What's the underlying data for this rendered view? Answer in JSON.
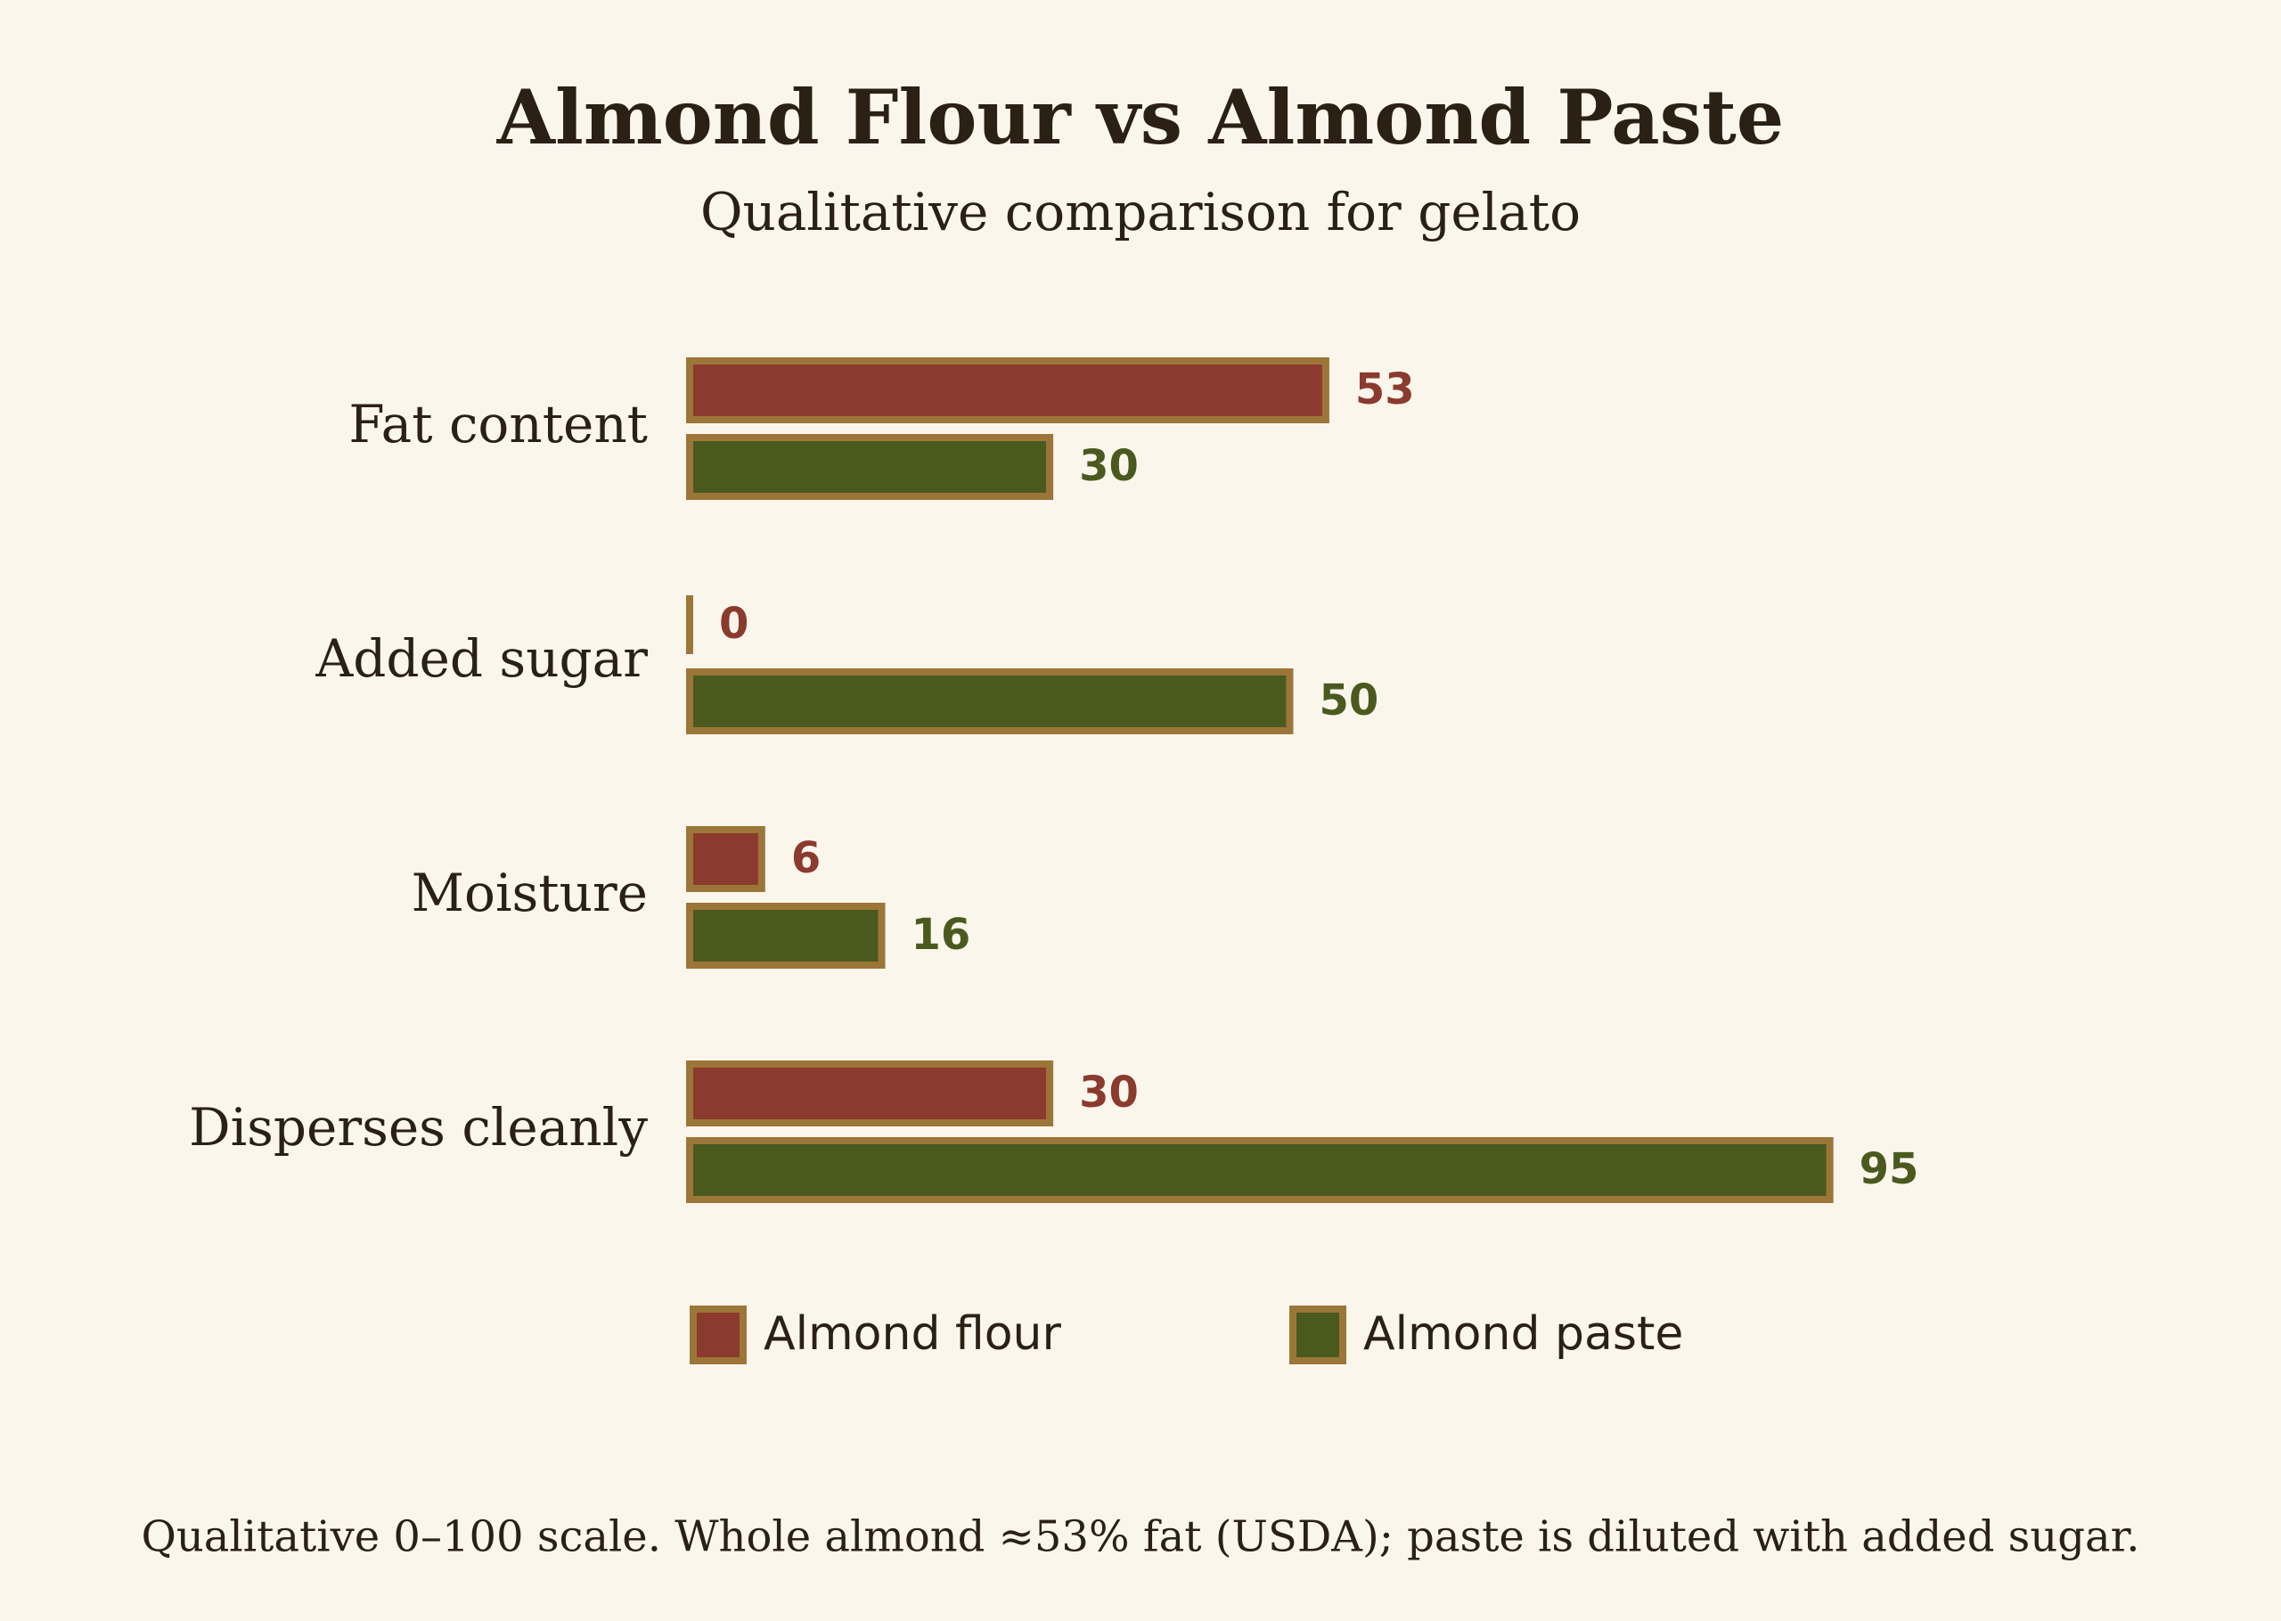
{
  "chart_data": {
    "type": "barh",
    "title": "Almond Flour vs Almond Paste",
    "subtitle": "Qualitative comparison for gelato",
    "categories": [
      "Fat content",
      "Added sugar",
      "Moisture",
      "Disperses cleanly"
    ],
    "series": [
      {
        "name": "Almond flour",
        "color": "#8b3a2e",
        "values": [
          53,
          0,
          6,
          30
        ]
      },
      {
        "name": "Almond paste",
        "color": "#4a5a1e",
        "values": [
          30,
          50,
          16,
          95
        ]
      }
    ],
    "xlim": [
      0,
      100
    ],
    "edgecolor": "#9c7638",
    "legend": "bottom",
    "note": "Qualitative 0–100 scale. Whole almond ≈53% fat (USDA); paste is diluted with added sugar."
  }
}
